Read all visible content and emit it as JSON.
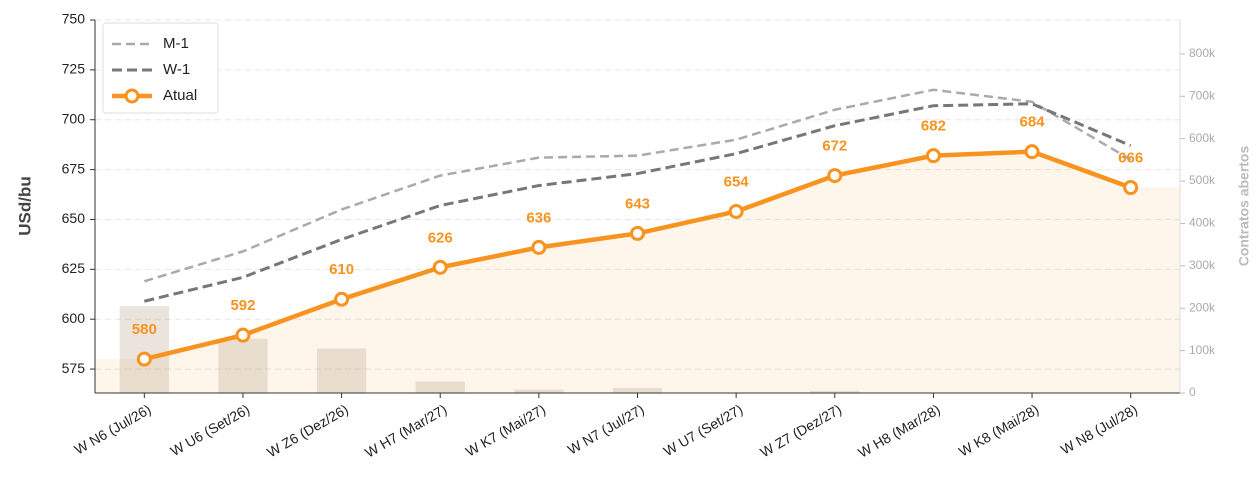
{
  "chart_data": {
    "type": "line",
    "categories": [
      "W N6 (Jul/26)",
      "W U6 (Set/26)",
      "W Z6 (Dez/26)",
      "W H7 (Mar/27)",
      "W K7 (Mai/27)",
      "W N7 (Jul/27)",
      "W U7 (Set/27)",
      "W Z7 (Dez/27)",
      "W H8 (Mar/28)",
      "W K8 (Mai/28)",
      "W N8 (Jul/28)"
    ],
    "ylabel": "USd/bu",
    "y2label": "Contratos abertos",
    "ylim": [
      563,
      750
    ],
    "yticks": [
      575,
      600,
      625,
      650,
      675,
      700,
      725,
      750
    ],
    "y2lim": [
      0,
      880000
    ],
    "y2ticks": [
      0,
      {
        "value": 100000,
        "label": "100k"
      },
      {
        "value": 200000,
        "label": "200k"
      },
      {
        "value": 300000,
        "label": "300k"
      },
      {
        "value": 400000,
        "label": "400k"
      },
      {
        "value": 500000,
        "label": "500k"
      },
      {
        "value": 600000,
        "label": "600k"
      },
      {
        "value": 700000,
        "label": "700k"
      },
      {
        "value": 800000,
        "label": "800k"
      }
    ],
    "grid": true,
    "legend": "upper left",
    "series": [
      {
        "name": "M-1",
        "color": "#aaaaaa",
        "values": [
          619,
          634,
          655,
          672,
          681,
          682,
          690,
          705,
          715,
          709,
          680
        ]
      },
      {
        "name": "W-1",
        "color": "#777777",
        "values": [
          609,
          621,
          640,
          657,
          667,
          673,
          683,
          697,
          707,
          708,
          687
        ]
      },
      {
        "name": "Atual",
        "color": "#f7931e",
        "values": [
          580,
          592,
          610,
          626,
          636,
          643,
          654,
          672,
          682,
          684,
          666
        ]
      }
    ],
    "bars": {
      "axis": "y2",
      "color": "#b8a48c",
      "values": [
        205000,
        128000,
        105000,
        27000,
        8000,
        12000,
        0,
        5000,
        0,
        0,
        0
      ]
    }
  }
}
